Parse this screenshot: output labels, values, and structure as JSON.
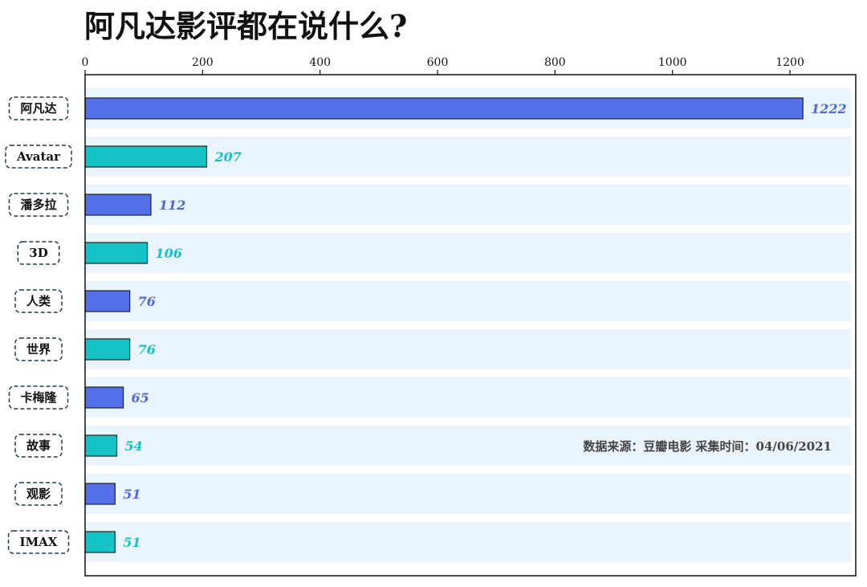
{
  "chart_data": {
    "type": "bar",
    "orientation": "horizontal",
    "title": "阿凡达影评都在说什么?",
    "categories": [
      "阿凡达",
      "Avatar",
      "潘多拉",
      "3D",
      "人类",
      "世界",
      "卡梅隆",
      "故事",
      "观影",
      "IMAX"
    ],
    "values": [
      1222,
      207,
      112,
      106,
      76,
      76,
      65,
      54,
      51,
      51
    ],
    "xlim": [
      0,
      1300
    ],
    "xticks": [
      0,
      200,
      400,
      600,
      800,
      1000,
      1200
    ],
    "xaxis_position": "top",
    "grid": false,
    "colors": [
      "#5470e8",
      "#14c3c8"
    ],
    "value_label_colors": [
      "#5068d8",
      "#14c3c8"
    ],
    "band_color": "#eaf4fc",
    "source_note": "数据来源：豆瓣电影    采集时间：04/06/2021"
  }
}
